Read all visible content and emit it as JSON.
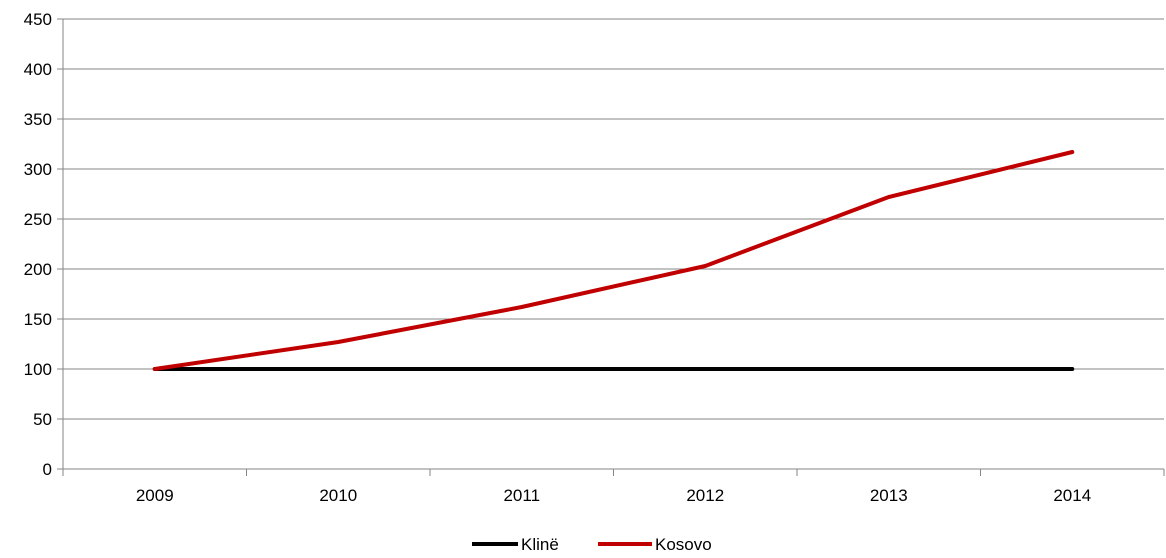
{
  "chart_data": {
    "type": "line",
    "title": "",
    "xlabel": "",
    "ylabel": "",
    "categories": [
      "2009",
      "2010",
      "2011",
      "2012",
      "2013",
      "2014"
    ],
    "ylim": [
      0,
      450
    ],
    "y_ticks": [
      0,
      50,
      100,
      150,
      200,
      250,
      300,
      350,
      400,
      450
    ],
    "grid": "horizontal",
    "legend_position": "bottom-center",
    "series": [
      {
        "name": "Klinë",
        "color": "#000000",
        "values": [
          100,
          100,
          100,
          100,
          100,
          100
        ]
      },
      {
        "name": "Kosovo",
        "color": "#c00000",
        "values": [
          100,
          127,
          162,
          203,
          272,
          317
        ]
      }
    ]
  }
}
